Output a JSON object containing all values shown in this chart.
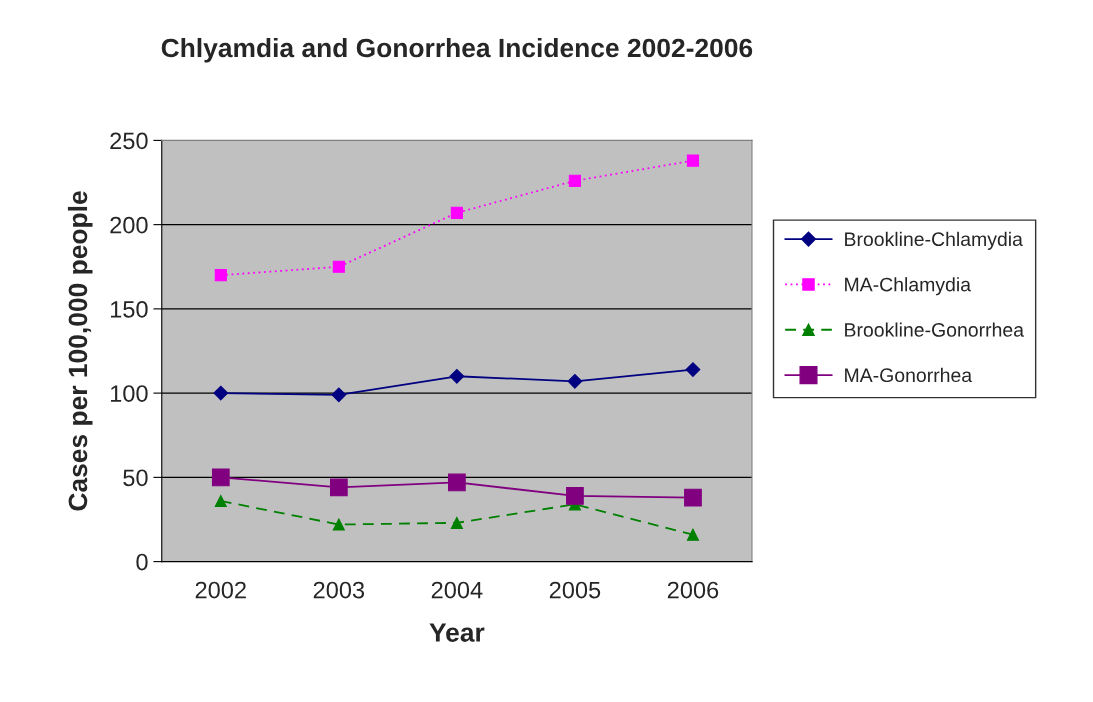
{
  "chart_data": {
    "type": "line",
    "title": "Chlyamdia and Gonorrhea Incidence 2002-2006",
    "xlabel": "Year",
    "ylabel": "Cases per 100,000 people",
    "categories": [
      "2002",
      "2003",
      "2004",
      "2005",
      "2006"
    ],
    "series": [
      {
        "name": "Brookline-Chlamydia",
        "color": "#000080",
        "marker": "diamond",
        "line_style": "solid",
        "values": [
          100,
          99,
          110,
          107,
          114
        ]
      },
      {
        "name": "MA-Chlamydia",
        "color": "#ff00ff",
        "marker": "square",
        "line_style": "dotted",
        "values": [
          170,
          175,
          207,
          226,
          238
        ]
      },
      {
        "name": "Brookline-Gonorrhea",
        "color": "#008000",
        "marker": "triangle",
        "line_style": "dashed",
        "values": [
          36,
          22,
          23,
          34,
          16
        ]
      },
      {
        "name": "MA-Gonorrhea",
        "color": "#800080",
        "marker": "square",
        "line_style": "solid",
        "values": [
          50,
          44,
          47,
          39,
          38
        ]
      }
    ],
    "ylim": [
      0,
      250
    ],
    "yticks": [
      0,
      50,
      100,
      150,
      200,
      250
    ],
    "grid": "y",
    "legend": "right"
  }
}
